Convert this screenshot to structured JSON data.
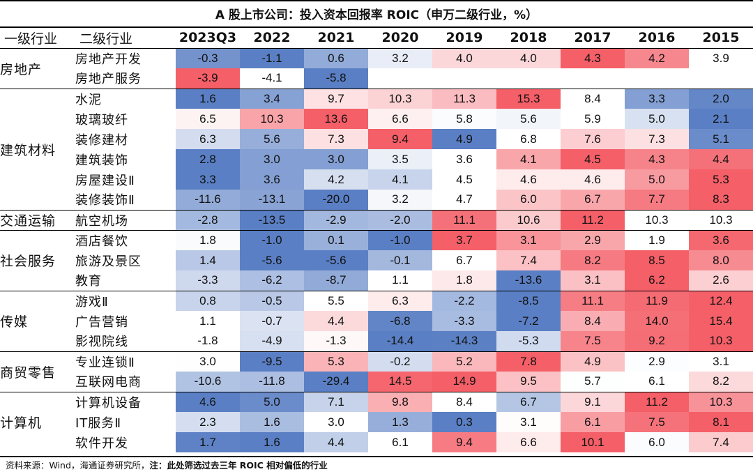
{
  "title": "A 股上市公司：投入资本回报率 ROIC（申万二级行业，%）",
  "header": {
    "level1": "一级行业",
    "level2": "二级行业"
  },
  "footer": {
    "source": "资料来源：Wind，海通证券研究所，",
    "note_label": "注：",
    "note": "此处筛选过去三年 ROIC 相对偏低的行业"
  },
  "chart_data": {
    "type": "table",
    "title": "A 股上市公司：投入资本回报率 ROIC（申万二级行业，%）",
    "columns": [
      "2023Q3",
      "2022",
      "2021",
      "2020",
      "2019",
      "2018",
      "2017",
      "2016",
      "2015"
    ],
    "color_scale": {
      "low": "#5a7fc4",
      "mid": "#ffffff",
      "high": "#f45f68"
    },
    "groups": [
      {
        "name": "房地产",
        "rows": [
          {
            "name": "房地产开发",
            "values": [
              -0.3,
              -1.1,
              0.6,
              3.2,
              4.0,
              4.0,
              4.3,
              4.2,
              3.9
            ]
          },
          {
            "name": "房地产服务",
            "values": [
              -3.9,
              -4.1,
              -5.8,
              null,
              null,
              null,
              null,
              null,
              null
            ]
          }
        ]
      },
      {
        "name": "建筑材料",
        "rows": [
          {
            "name": "水泥",
            "values": [
              1.6,
              3.4,
              9.7,
              10.3,
              11.3,
              15.3,
              8.4,
              3.3,
              2.0
            ]
          },
          {
            "name": "玻璃玻纤",
            "values": [
              6.5,
              10.3,
              13.6,
              6.6,
              5.8,
              5.6,
              5.9,
              5.0,
              2.1
            ]
          },
          {
            "name": "装修建材",
            "values": [
              6.3,
              5.6,
              7.3,
              9.4,
              4.9,
              6.8,
              7.6,
              7.3,
              5.1
            ]
          },
          {
            "name": "建筑装饰",
            "values": [
              2.8,
              3.0,
              3.0,
              3.5,
              3.6,
              4.1,
              4.5,
              4.3,
              4.4
            ]
          },
          {
            "name": "房屋建设Ⅱ",
            "values": [
              3.3,
              3.6,
              4.2,
              4.1,
              4.5,
              4.6,
              4.6,
              5.0,
              5.3
            ]
          },
          {
            "name": "装修装饰Ⅱ",
            "values": [
              -11.6,
              -13.1,
              -20.0,
              3.2,
              4.7,
              6.0,
              6.7,
              7.7,
              8.3
            ]
          }
        ]
      },
      {
        "name": "交通运输",
        "rows": [
          {
            "name": "航空机场",
            "values": [
              -2.8,
              -13.5,
              -2.9,
              -2.0,
              11.1,
              10.6,
              11.2,
              10.3,
              10.3
            ]
          }
        ]
      },
      {
        "name": "社会服务",
        "rows": [
          {
            "name": "酒店餐饮",
            "values": [
              1.8,
              -1.0,
              0.1,
              -1.0,
              3.7,
              3.1,
              2.9,
              1.9,
              3.6
            ]
          },
          {
            "name": "旅游及景区",
            "values": [
              1.4,
              -5.6,
              -5.6,
              -0.1,
              6.7,
              7.4,
              8.2,
              8.5,
              8.0
            ]
          },
          {
            "name": "教育",
            "values": [
              -3.3,
              -6.2,
              -8.7,
              1.1,
              1.8,
              -13.6,
              3.1,
              6.2,
              2.6
            ]
          }
        ]
      },
      {
        "name": "传媒",
        "rows": [
          {
            "name": "游戏Ⅱ",
            "values": [
              0.8,
              -0.5,
              5.5,
              6.3,
              -2.2,
              -8.5,
              11.1,
              11.9,
              12.4
            ]
          },
          {
            "name": "广告营销",
            "values": [
              1.1,
              -0.7,
              4.4,
              -6.8,
              -3.3,
              -7.2,
              8.4,
              14.0,
              15.4
            ]
          },
          {
            "name": "影视院线",
            "values": [
              -1.8,
              -4.9,
              -1.3,
              -14.4,
              -14.3,
              -5.3,
              7.5,
              9.2,
              10.3
            ]
          }
        ]
      },
      {
        "name": "商贸零售",
        "rows": [
          {
            "name": "专业连锁Ⅱ",
            "values": [
              3.0,
              -9.5,
              5.3,
              -0.2,
              5.2,
              7.8,
              4.9,
              2.9,
              3.1
            ]
          },
          {
            "name": "互联网电商",
            "values": [
              -10.6,
              -11.8,
              -29.4,
              14.5,
              14.9,
              9.5,
              5.7,
              6.1,
              8.2
            ]
          }
        ]
      },
      {
        "name": "计算机",
        "rows": [
          {
            "name": "计算机设备",
            "values": [
              4.6,
              5.0,
              7.1,
              9.8,
              8.4,
              6.7,
              9.1,
              11.2,
              10.3
            ]
          },
          {
            "name": "IT服务Ⅱ",
            "values": [
              2.3,
              1.6,
              3.0,
              1.3,
              0.3,
              3.1,
              6.1,
              7.5,
              8.1
            ]
          },
          {
            "name": "软件开发",
            "values": [
              1.7,
              1.6,
              4.4,
              6.1,
              9.4,
              6.6,
              10.1,
              6.0,
              7.4
            ]
          }
        ]
      }
    ]
  }
}
